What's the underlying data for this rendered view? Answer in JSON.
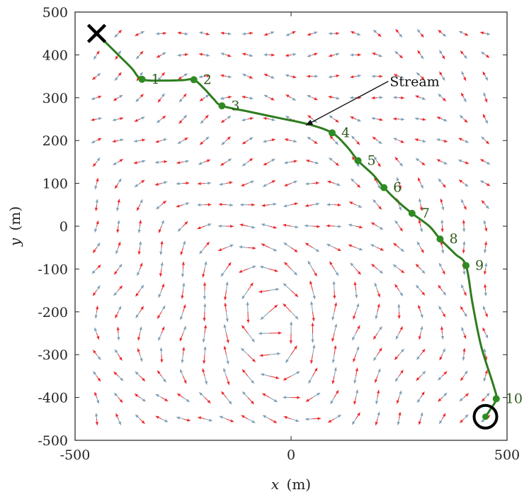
{
  "chart_data": {
    "type": "line",
    "xlabel_var": "x",
    "xlabel_unit": "(m)",
    "ylabel_var": "y",
    "ylabel_unit": "(m)",
    "xlim": [
      -500,
      500
    ],
    "ylim": [
      -500,
      500
    ],
    "x_ticks": [
      "-500",
      "0",
      "500"
    ],
    "y_ticks": [
      "500",
      "400",
      "300",
      "200",
      "100",
      "0",
      "-100",
      "-200",
      "-300",
      "-400",
      "-500"
    ],
    "colors": {
      "path": "#2e7d1f",
      "waypoint": "#2e8b22",
      "waypoint_label": "#2d5a1b",
      "arrow_a": "#e8282b",
      "arrow_b": "#7f9db3",
      "axis": "#222222"
    },
    "start": {
      "x": -450,
      "y": 450,
      "marker": "cross-icon"
    },
    "goal": {
      "x": 450,
      "y": -445,
      "marker": "circle-icon"
    },
    "waypoints": [
      {
        "label": "1",
        "x": -345,
        "y": 343
      },
      {
        "label": "2",
        "x": -225,
        "y": 342
      },
      {
        "label": "3",
        "x": -160,
        "y": 281
      },
      {
        "label": "4",
        "x": 95,
        "y": 218
      },
      {
        "label": "5",
        "x": 155,
        "y": 153
      },
      {
        "label": "6",
        "x": 215,
        "y": 90
      },
      {
        "label": "7",
        "x": 280,
        "y": 30
      },
      {
        "label": "8",
        "x": 345,
        "y": -30
      },
      {
        "label": "9",
        "x": 405,
        "y": -92
      },
      {
        "label": "10",
        "x": 475,
        "y": -403
      }
    ],
    "path_points": [
      {
        "x": -450,
        "y": 450
      },
      {
        "x": -410,
        "y": 410
      },
      {
        "x": -370,
        "y": 370
      },
      {
        "x": -345,
        "y": 343
      },
      {
        "x": -290,
        "y": 340
      },
      {
        "x": -250,
        "y": 341
      },
      {
        "x": -225,
        "y": 342
      },
      {
        "x": -200,
        "y": 320
      },
      {
        "x": -180,
        "y": 298
      },
      {
        "x": -160,
        "y": 281
      },
      {
        "x": -100,
        "y": 268
      },
      {
        "x": -30,
        "y": 253
      },
      {
        "x": 40,
        "y": 238
      },
      {
        "x": 95,
        "y": 218
      },
      {
        "x": 130,
        "y": 185
      },
      {
        "x": 155,
        "y": 153
      },
      {
        "x": 190,
        "y": 120
      },
      {
        "x": 215,
        "y": 90
      },
      {
        "x": 250,
        "y": 55
      },
      {
        "x": 280,
        "y": 30
      },
      {
        "x": 320,
        "y": 0
      },
      {
        "x": 345,
        "y": -30
      },
      {
        "x": 380,
        "y": -65
      },
      {
        "x": 405,
        "y": -92
      },
      {
        "x": 420,
        "y": -180
      },
      {
        "x": 440,
        "y": -280
      },
      {
        "x": 468,
        "y": -370
      },
      {
        "x": 475,
        "y": -403
      },
      {
        "x": 460,
        "y": -430
      },
      {
        "x": 450,
        "y": -445
      }
    ],
    "annotation": {
      "text": "Stream",
      "text_x": 235,
      "text_y": 330,
      "arrow_to_x": 35,
      "arrow_to_y": 236
    },
    "vector_field": {
      "grid_min": -500,
      "grid_max": 500,
      "grid_step": 50,
      "vortex_x": -40,
      "vortex_y": -230
    }
  }
}
